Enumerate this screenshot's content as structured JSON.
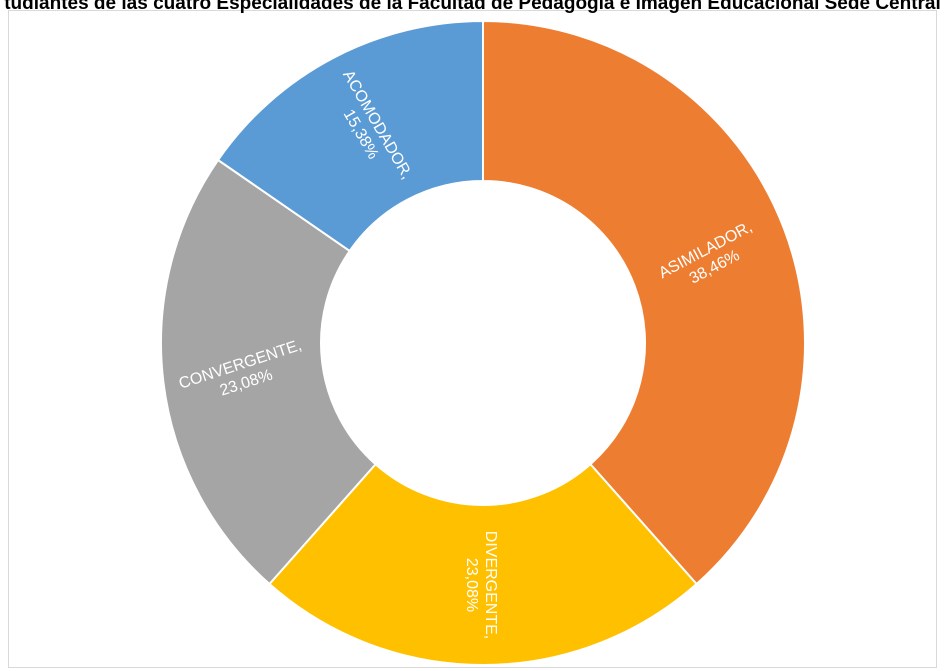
{
  "chart_data": {
    "type": "pie",
    "variant": "doughnut",
    "title": "tudiantes de las cuatro Especialidades de la Facultad de Pedagogía e Imagen Educacional Sede Central",
    "categories": [
      "ASIMILADOR",
      "DIVERGENTE",
      "CONVERGENTE",
      "ACOMODADOR"
    ],
    "values": [
      38.46,
      23.08,
      23.08,
      15.38
    ],
    "value_labels": [
      "38,46%",
      "23,08%",
      "23,08%",
      "15,38%"
    ],
    "label_suffix": ",",
    "colors": [
      "#ED7D31",
      "#FFC000",
      "#A5A5A5",
      "#5B9BD5"
    ],
    "legend": "none",
    "data_labels": "inside"
  }
}
